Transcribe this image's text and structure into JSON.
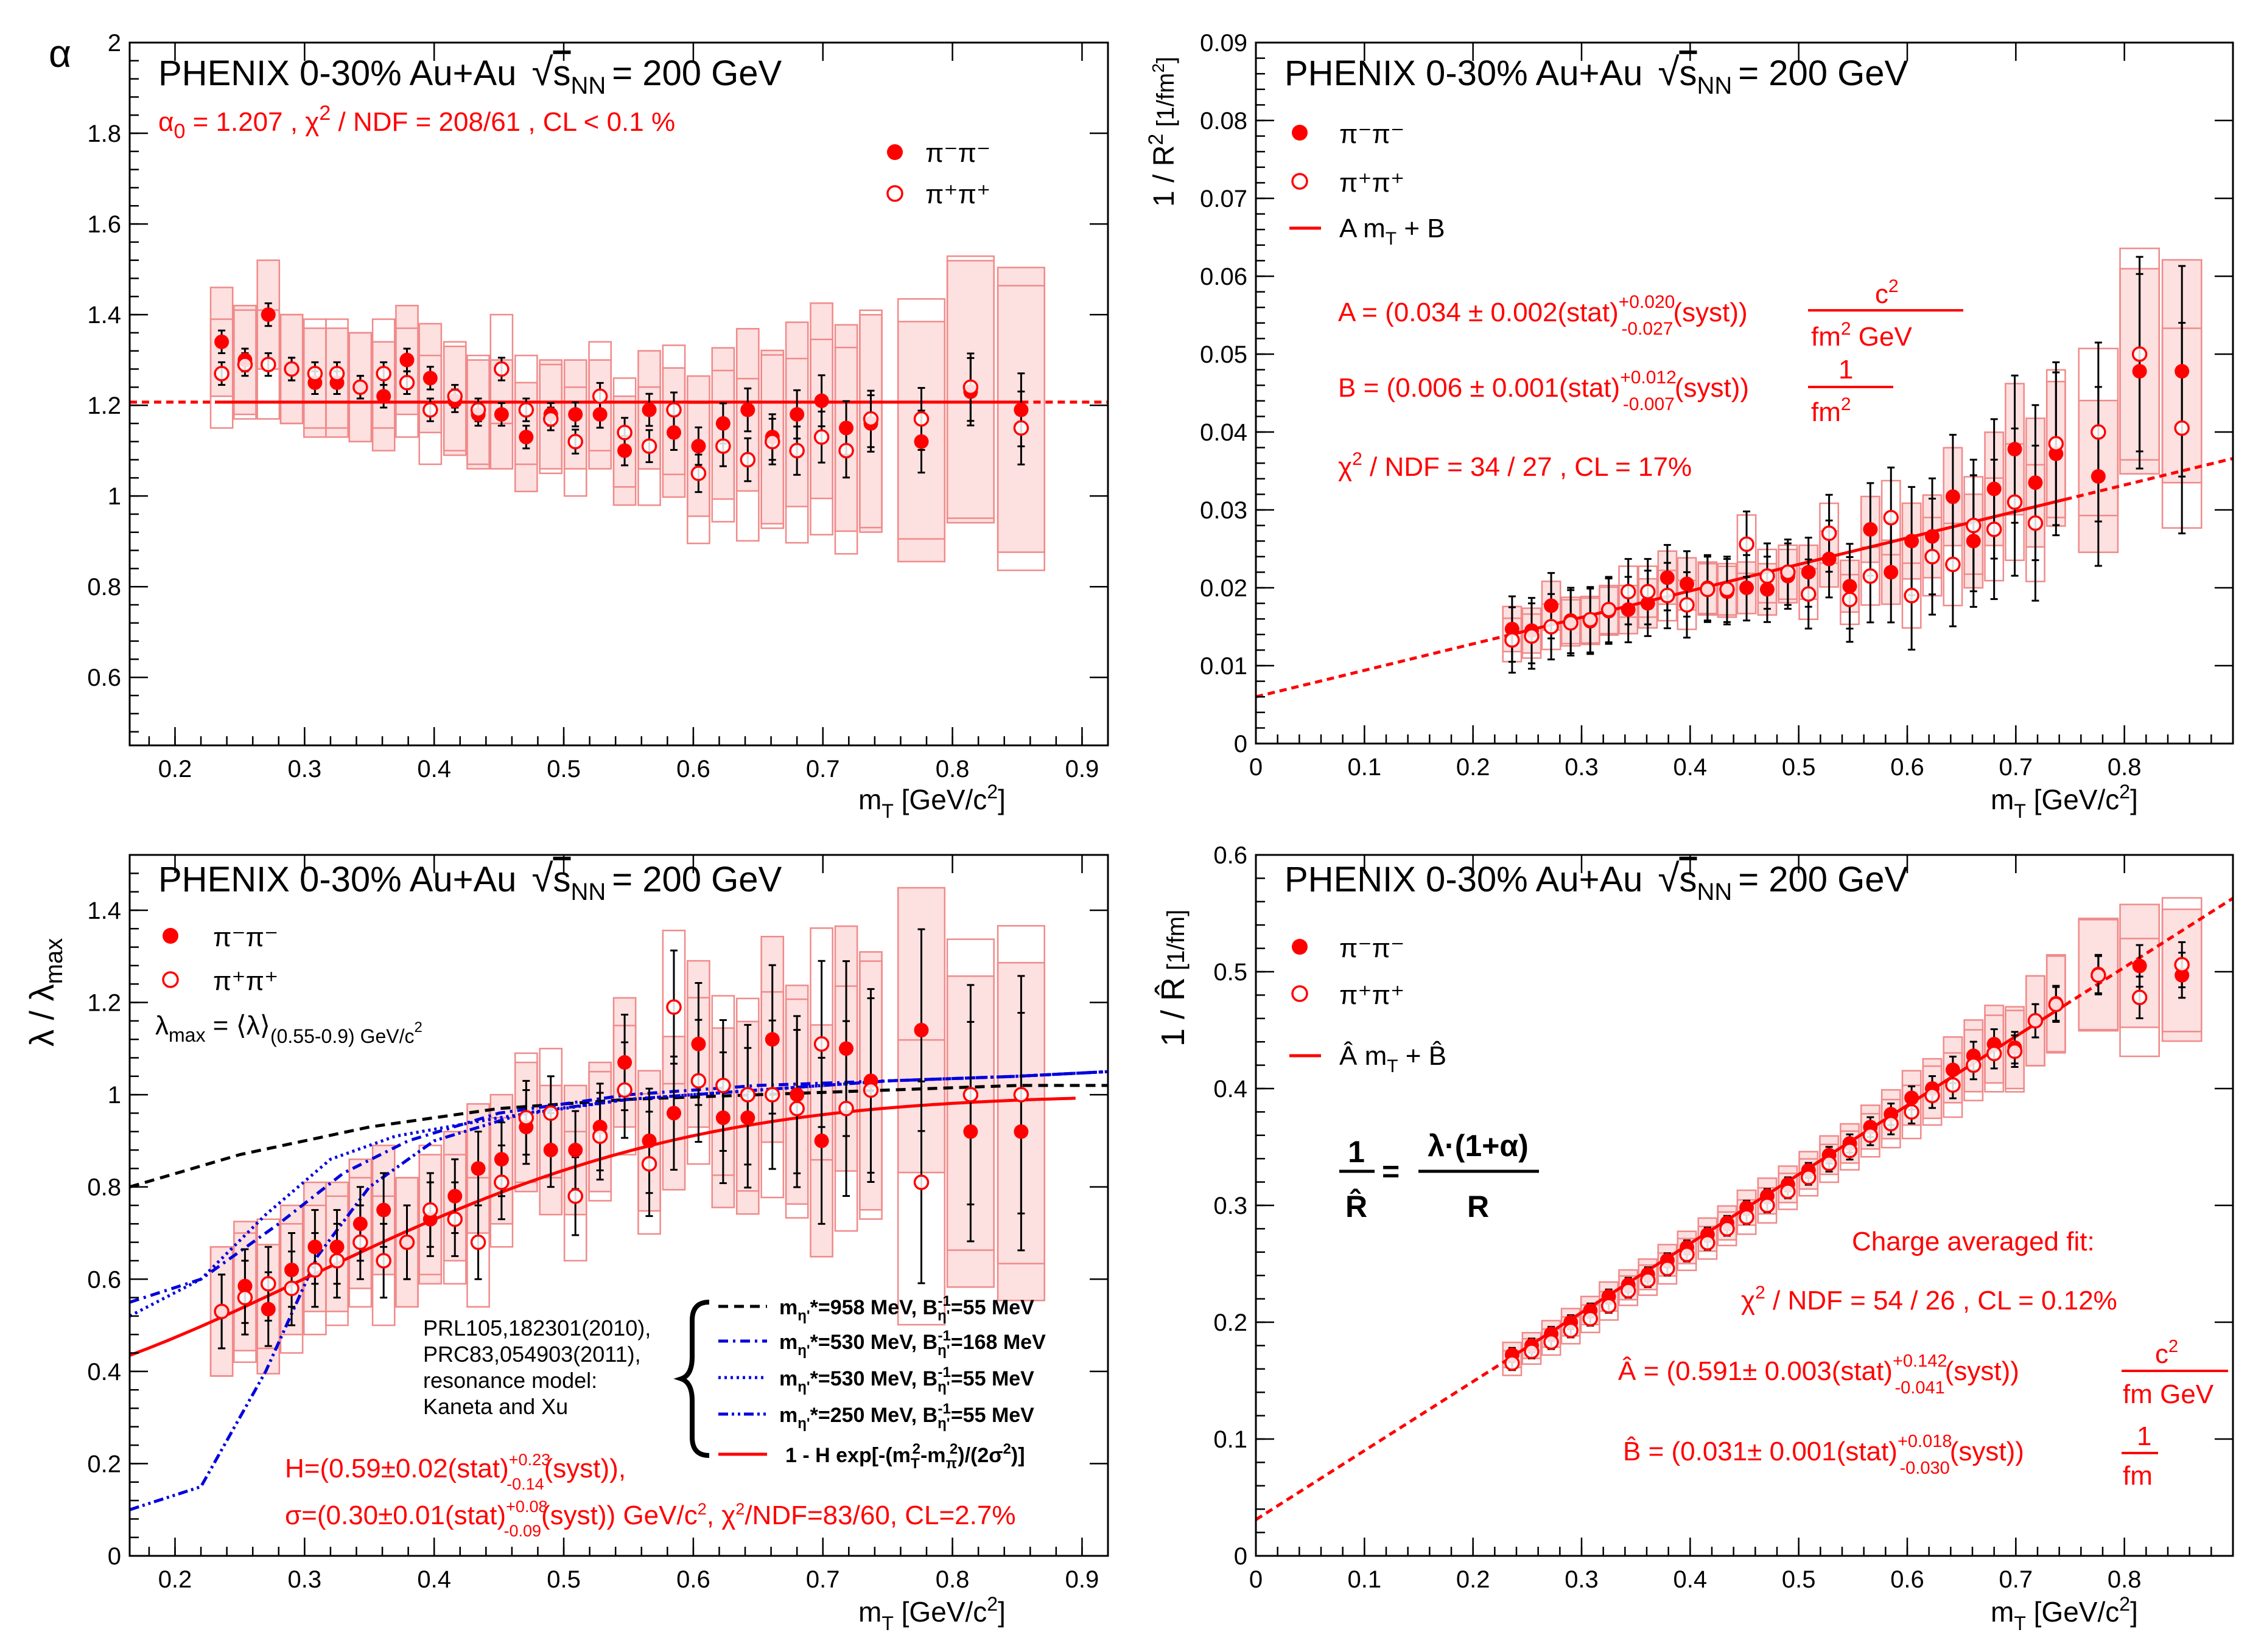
{
  "common": {
    "experiment_label": "PHENIX 0-30%  Au+Au",
    "sqrt_symbol": "√",
    "s_nn_label": "s",
    "s_nn_sub": "NN",
    "energy_label": "= 200 GeV",
    "xlabel_m": "m",
    "xlabel_sub": "T",
    "xlabel_unit": " [GeV/c",
    "xlabel_unit_sup": "2",
    "xlabel_close": "]",
    "legend_pim": "π⁻π⁻",
    "legend_pip": "π⁺π⁺",
    "colors": {
      "data": "#ff0000",
      "syst_fill": "#fde0e0",
      "syst_line": "#f08a8a",
      "axes": "#000000",
      "model_blue": "#0000dd"
    }
  },
  "panels": {
    "alpha": {
      "ylabel": "α",
      "fit_alpha0": "α",
      "fit_alpha0_sub": "0",
      "fit_text": " = 1.207  , χ",
      "fit_text_sup": "2",
      "fit_text2": " / NDF = 208/61 , CL < 0.1 %"
    },
    "invR2": {
      "ylabel": "1 / R",
      "ylabel_sup": "2",
      "ylabel_unit": " [1/fm",
      "ylabel_unit_sup": "2",
      "ylabel_close": "]",
      "legend_fit": "A m",
      "legend_fit_sub": "T",
      "legend_fit_end": " + B",
      "A_text": "A = (0.034 ± 0.002(stat)",
      "A_sup": "+0.020",
      "A_sub": "-0.027",
      "A_end": "(syst))",
      "A_num": "c",
      "A_num_sup": "2",
      "A_den": "fm",
      "A_den_sup": "2",
      "A_den_end": " GeV",
      "B_text": "B = (0.006 ± 0.001(stat)",
      "B_sup": "+0.012",
      "B_sub": "-0.007",
      "B_end": "(syst))",
      "B_num": "1",
      "B_den": "fm",
      "B_den_sup": "2",
      "chi_text": "χ",
      "chi_sup": "2",
      "chi_end": " / NDF = 34 / 27 , CL = 17%"
    },
    "lambda": {
      "ylabel": "λ / λ",
      "ylabel_sub": "max",
      "lmax_text": "λ",
      "lmax_sub": "max",
      "lmax_mid": " = ⟨λ⟩",
      "lmax_sub2": "(0.55-0.9) GeV/c",
      "lmax_sup": "2",
      "ref_lines": [
        "PRL105,182301(2010),",
        "PRC83,054903(2011),",
        "resonance model:",
        "Kaneta and Xu"
      ],
      "models": [
        {
          "label": "m",
          "sub": "η'",
          "rest": "*=958 MeV, B",
          "bsub": "η'",
          "bsup": "-1",
          "end": "=55 MeV"
        },
        {
          "label": "m",
          "sub": "η'",
          "rest": "*=530 MeV, B",
          "bsub": "η'",
          "bsup": "-1",
          "end": "=168 MeV"
        },
        {
          "label": "m",
          "sub": "η'",
          "rest": "*=530 MeV, B",
          "bsub": "η'",
          "bsup": "-1",
          "end": "=55 MeV"
        },
        {
          "label": "m",
          "sub": "η'",
          "rest": "*=250 MeV, B",
          "bsub": "η'",
          "bsup": "-1",
          "end": "=55 MeV"
        }
      ],
      "fit_legend": "1 - H exp[-(m",
      "fit_legend_sub": "T",
      "fit_legend_sup": "2",
      "fit_legend_mid": "-m",
      "fit_legend_sub2": "π",
      "fit_legend_sup2": "2",
      "fit_legend_end": ")/(2σ",
      "fit_legend_sup3": "2",
      "fit_legend_close": ")]",
      "H_text": "H=(0.59±0.02(stat)",
      "H_sup": "+0.23",
      "H_sub": "-0.14",
      "H_end": "(syst)),",
      "s_text": "σ=(0.30±0.01(stat)",
      "s_sup": "+0.08",
      "s_sub": "-0.09",
      "s_end": "(syst)) GeV/c",
      "s_sup2": "2",
      "s_end2": ", χ",
      "s_sup3": "2",
      "s_end3": "/NDF=83/60, CL=2.7%"
    },
    "invRhat": {
      "ylabel": "1 / R̂",
      "ylabel_unit": " [1/fm]",
      "legend_fit": "Â m",
      "legend_fit_sub": "T",
      "legend_fit_end": " + B̂",
      "eq_lhs_num": "1",
      "eq_lhs_den": "R̂",
      "eq_eq": "=",
      "eq_rhs_num": "λ·(1+α)",
      "eq_rhs_den": "R",
      "charge_title": "Charge averaged  fit:",
      "chi_text": "χ",
      "chi_sup": "2",
      "chi_end": " / NDF = 54 / 26 , CL = 0.12%",
      "A_text": "Â = (0.591± 0.003(stat)",
      "A_sup": "+0.142",
      "A_sub": "-0.041",
      "A_end": "(syst))",
      "A_num": "c",
      "A_num_sup": "2",
      "A_den": "fm GeV",
      "B_text": "B̂ = (0.031± 0.001(stat)",
      "B_sup": "+0.018",
      "B_sub": "-0.030",
      "B_end": "(syst))",
      "B_num": "1",
      "B_den": "fm"
    }
  },
  "chart_data": [
    {
      "type": "scatter",
      "title": "PHENIX 0-30% Au+Au √sNN = 200 GeV",
      "xlabel": "mT [GeV/c2]",
      "ylabel": "α",
      "xlim": [
        0.165,
        0.92
      ],
      "ylim": [
        0.45,
        2.0
      ],
      "xticks": [
        0.2,
        0.3,
        0.4,
        0.5,
        0.6,
        0.7,
        0.8,
        0.9
      ],
      "yticks": [
        0.6,
        0.8,
        1,
        1.2,
        1.4,
        1.6,
        1.8,
        2
      ],
      "x": [
        0.236,
        0.254,
        0.272,
        0.29,
        0.308,
        0.325,
        0.343,
        0.361,
        0.379,
        0.397,
        0.416,
        0.434,
        0.452,
        0.471,
        0.49,
        0.509,
        0.528,
        0.547,
        0.566,
        0.585,
        0.604,
        0.623,
        0.642,
        0.661,
        0.68,
        0.699,
        0.718,
        0.737,
        0.776,
        0.814,
        0.853
      ],
      "series": [
        {
          "name": "π⁻π⁻",
          "marker": "filled",
          "values": [
            1.34,
            1.3,
            1.4,
            1.28,
            1.25,
            1.25,
            1.24,
            1.22,
            1.3,
            1.26,
            1.21,
            1.18,
            1.18,
            1.13,
            1.18,
            1.18,
            1.18,
            1.1,
            1.19,
            1.14,
            1.11,
            1.16,
            1.19,
            1.13,
            1.18,
            1.21,
            1.15,
            1.16,
            1.12,
            1.23,
            1.19
          ]
        },
        {
          "name": "π⁺π⁺",
          "marker": "open",
          "values": [
            1.27,
            1.29,
            1.29,
            1.28,
            1.27,
            1.27,
            1.24,
            1.27,
            1.25,
            1.19,
            1.22,
            1.19,
            1.28,
            1.19,
            1.17,
            1.12,
            1.22,
            1.14,
            1.11,
            1.19,
            1.05,
            1.11,
            1.08,
            1.12,
            1.1,
            1.13,
            1.1,
            1.17,
            1.17,
            1.24,
            1.15
          ]
        }
      ],
      "fit": {
        "name": "constant",
        "value": 1.207
      }
    },
    {
      "type": "scatter",
      "title": "PHENIX 0-30% Au+Au √sNN = 200 GeV",
      "xlabel": "mT [GeV/c2]",
      "ylabel": "1 / R2 [1/fm2]",
      "xlim": [
        0,
        0.9
      ],
      "ylim": [
        0,
        0.09
      ],
      "xticks": [
        0,
        0.1,
        0.2,
        0.3,
        0.4,
        0.5,
        0.6,
        0.7,
        0.8
      ],
      "yticks": [
        0,
        0.01,
        0.02,
        0.03,
        0.04,
        0.05,
        0.06,
        0.07,
        0.08,
        0.09
      ],
      "x": [
        0.236,
        0.254,
        0.272,
        0.29,
        0.308,
        0.325,
        0.343,
        0.361,
        0.379,
        0.397,
        0.416,
        0.434,
        0.452,
        0.471,
        0.49,
        0.509,
        0.528,
        0.547,
        0.566,
        0.585,
        0.604,
        0.623,
        0.642,
        0.661,
        0.68,
        0.699,
        0.718,
        0.737,
        0.776,
        0.814,
        0.853
      ],
      "series": [
        {
          "name": "π⁻π⁻",
          "marker": "filled",
          "values": [
            0.0147,
            0.0145,
            0.0177,
            0.0158,
            0.0157,
            0.017,
            0.0172,
            0.018,
            0.0213,
            0.0205,
            0.02,
            0.0195,
            0.02,
            0.0198,
            0.0215,
            0.022,
            0.0237,
            0.0202,
            0.0275,
            0.022,
            0.026,
            0.0266,
            0.0317,
            0.026,
            0.0327,
            0.0378,
            0.0335,
            0.0372,
            0.0343,
            0.0478,
            0.0478
          ]
        },
        {
          "name": "π⁺π⁺",
          "marker": "open",
          "values": [
            0.0133,
            0.0138,
            0.015,
            0.0155,
            0.0159,
            0.0172,
            0.0195,
            0.0195,
            0.019,
            0.0178,
            0.0198,
            0.0198,
            0.0256,
            0.0215,
            0.022,
            0.0192,
            0.027,
            0.0185,
            0.0215,
            0.029,
            0.019,
            0.024,
            0.023,
            0.028,
            0.0275,
            0.031,
            0.0283,
            0.0385,
            0.04,
            0.05,
            0.0405
          ]
        }
      ],
      "fit": {
        "name": "A mT + B",
        "A": 0.034,
        "B": 0.006
      }
    },
    {
      "type": "scatter",
      "title": "PHENIX 0-30% Au+Au √sNN = 200 GeV",
      "xlabel": "mT [GeV/c2]",
      "ylabel": "λ / λmax",
      "xlim": [
        0.165,
        0.92
      ],
      "ylim": [
        0,
        1.52
      ],
      "xticks": [
        0.2,
        0.3,
        0.4,
        0.5,
        0.6,
        0.7,
        0.8,
        0.9
      ],
      "yticks": [
        0,
        0.2,
        0.4,
        0.6,
        0.8,
        1,
        1.2,
        1.4
      ],
      "x": [
        0.236,
        0.254,
        0.272,
        0.29,
        0.308,
        0.325,
        0.343,
        0.361,
        0.379,
        0.397,
        0.416,
        0.434,
        0.452,
        0.471,
        0.49,
        0.509,
        0.528,
        0.547,
        0.566,
        0.585,
        0.604,
        0.623,
        0.642,
        0.661,
        0.68,
        0.699,
        0.718,
        0.737,
        0.776,
        0.814,
        0.853
      ],
      "series": [
        {
          "name": "π⁻π⁻",
          "marker": "filled",
          "values": [
            0.53,
            0.585,
            0.535,
            0.62,
            0.67,
            0.67,
            0.72,
            0.75,
            0.68,
            0.73,
            0.78,
            0.84,
            0.86,
            0.93,
            0.88,
            0.88,
            0.93,
            1.07,
            0.9,
            0.96,
            1.11,
            0.95,
            0.95,
            1.12,
            1.0,
            0.9,
            1.1,
            1.03,
            1.14,
            0.92,
            0.92
          ]
        },
        {
          "name": "π⁺π⁺",
          "marker": "open",
          "values": [
            0.53,
            0.56,
            0.59,
            0.58,
            0.62,
            0.64,
            0.68,
            0.64,
            0.68,
            0.75,
            0.73,
            0.68,
            0.81,
            0.95,
            0.96,
            0.78,
            0.91,
            1.01,
            0.85,
            1.19,
            1.03,
            1.02,
            1.0,
            1.0,
            0.97,
            1.11,
            0.97,
            1.01,
            0.81,
            1.0,
            1.0
          ]
        }
      ],
      "fit": {
        "name": "1 - H exp[-(mT2-mπ2)/(2σ2)]",
        "H": 0.59,
        "sigma": 0.3
      },
      "models": [
        {
          "name": "mη'*=958 MeV, Bη'-1=55 MeV",
          "style": "dashed",
          "color": "#000000",
          "x": [
            0.165,
            0.25,
            0.35,
            0.45,
            0.55,
            0.65,
            0.75,
            0.85,
            0.92
          ],
          "y": [
            0.8,
            0.87,
            0.93,
            0.97,
            0.99,
            1.0,
            1.01,
            1.02,
            1.02
          ]
        },
        {
          "name": "mη'*=530 MeV, Bη'-1=168 MeV",
          "style": "dashdot",
          "color": "#0000dd",
          "x": [
            0.165,
            0.22,
            0.28,
            0.33,
            0.38,
            0.45,
            0.55,
            0.65,
            0.75,
            0.85,
            0.92
          ],
          "y": [
            0.55,
            0.6,
            0.72,
            0.83,
            0.9,
            0.96,
            1.0,
            1.02,
            1.03,
            1.04,
            1.05
          ]
        },
        {
          "name": "mη'*=530 MeV, Bη'-1=55 MeV",
          "style": "dotted",
          "color": "#0000dd",
          "x": [
            0.165,
            0.22,
            0.27,
            0.32,
            0.37,
            0.45,
            0.55,
            0.65,
            0.75,
            0.85,
            0.92
          ],
          "y": [
            0.52,
            0.6,
            0.74,
            0.86,
            0.91,
            0.95,
            0.99,
            1.01,
            1.03,
            1.04,
            1.05
          ]
        },
        {
          "name": "mη'*=250 MeV, Bη'-1=55 MeV",
          "style": "dashdotdot",
          "color": "#0000dd",
          "x": [
            0.165,
            0.22,
            0.27,
            0.31,
            0.35,
            0.4,
            0.47,
            0.55,
            0.65,
            0.75,
            0.85,
            0.92
          ],
          "y": [
            0.1,
            0.15,
            0.4,
            0.65,
            0.8,
            0.9,
            0.96,
            0.99,
            1.01,
            1.03,
            1.04,
            1.05
          ]
        }
      ]
    },
    {
      "type": "scatter",
      "title": "PHENIX 0-30% Au+Au √sNN = 200 GeV",
      "xlabel": "mT [GeV/c2]",
      "ylabel": "1 / R̂ [1/fm]",
      "xlim": [
        0,
        0.9
      ],
      "ylim": [
        0,
        0.6
      ],
      "xticks": [
        0,
        0.1,
        0.2,
        0.3,
        0.4,
        0.5,
        0.6,
        0.7,
        0.8
      ],
      "yticks": [
        0,
        0.1,
        0.2,
        0.3,
        0.4,
        0.5,
        0.6
      ],
      "x": [
        0.236,
        0.254,
        0.272,
        0.29,
        0.308,
        0.325,
        0.343,
        0.361,
        0.379,
        0.397,
        0.416,
        0.434,
        0.452,
        0.471,
        0.49,
        0.509,
        0.528,
        0.547,
        0.566,
        0.585,
        0.604,
        0.623,
        0.642,
        0.661,
        0.68,
        0.699,
        0.718,
        0.737,
        0.776,
        0.814,
        0.853
      ],
      "series": [
        {
          "name": "π⁻π⁻",
          "marker": "filled",
          "values": [
            0.172,
            0.18,
            0.19,
            0.2,
            0.21,
            0.222,
            0.232,
            0.241,
            0.253,
            0.264,
            0.275,
            0.285,
            0.298,
            0.308,
            0.318,
            0.33,
            0.343,
            0.353,
            0.367,
            0.378,
            0.392,
            0.4,
            0.416,
            0.428,
            0.438,
            0.435,
            0.458,
            0.473,
            0.498,
            0.505,
            0.497
          ]
        },
        {
          "name": "π⁺π⁺",
          "marker": "open",
          "values": [
            0.165,
            0.175,
            0.183,
            0.193,
            0.203,
            0.214,
            0.227,
            0.236,
            0.246,
            0.258,
            0.268,
            0.28,
            0.29,
            0.3,
            0.312,
            0.324,
            0.336,
            0.347,
            0.36,
            0.37,
            0.38,
            0.394,
            0.403,
            0.42,
            0.43,
            0.432,
            0.458,
            0.472,
            0.497,
            0.478,
            0.506
          ]
        }
      ],
      "fit": {
        "name": "Â mT + B̂",
        "A": 0.591,
        "B": 0.031
      }
    }
  ]
}
